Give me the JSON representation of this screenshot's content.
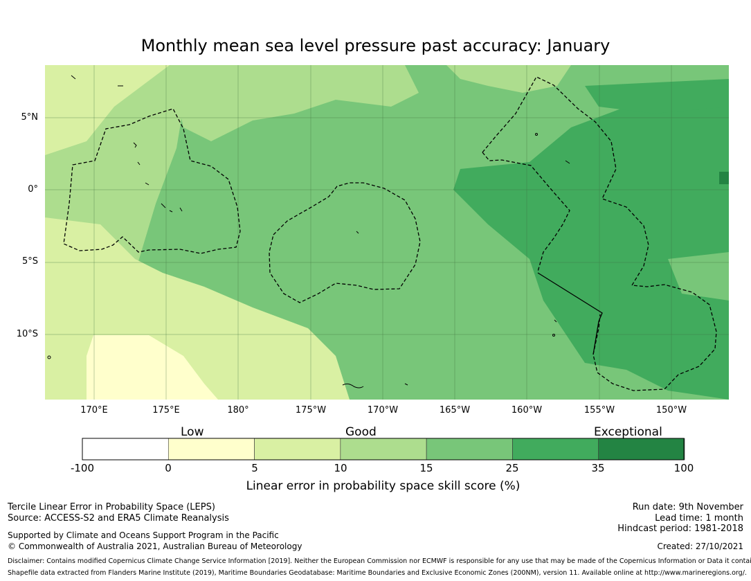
{
  "title": "Monthly mean sea level pressure past accuracy: January",
  "map": {
    "lat_labels": [
      "5°N",
      "0°",
      "5°S",
      "10°S"
    ],
    "lon_labels": [
      "170°E",
      "175°E",
      "180°",
      "175°W",
      "170°W",
      "165°W",
      "160°W",
      "155°W",
      "150°W"
    ]
  },
  "legend": {
    "categories": [
      "Low",
      "Good",
      "Exceptional"
    ],
    "ticks": [
      "-100",
      "0",
      "5",
      "10",
      "15",
      "25",
      "35",
      "100"
    ],
    "colors": [
      "#ffffff",
      "#ffffcc",
      "#d9f0a3",
      "#addd8e",
      "#78c679",
      "#41ab5d",
      "#238443"
    ],
    "label": "Linear error in probability space skill score (%)"
  },
  "footer": {
    "method": "Tercile Linear Error in Probability Space (LEPS)",
    "source": "Source: ACCESS-S2 and ERA5 Climate Reanalysis",
    "supported": "Supported by Climate and Oceans Support Program in the Pacific",
    "copyright": "© Commonwealth of Australia 2021, Australian Bureau of Meteorology",
    "run_date": "Run date: 9th November",
    "lead_time": "Lead time: 1 month",
    "hindcast": "Hindcast period: 1981-2018",
    "created": "Created: 27/10/2021",
    "disclaimer1": "Disclaimer: Contains modified Copernicus Climate Change Service Information [2019]. Neither the European Commission nor ECMWF is responsible for any use that may be made of the Copernicus Information or Data it contains.",
    "disclaimer2": "Shapefile data extracted from Flanders Marine Institute (2019), Maritime Boundaries Geodatabase: Maritime Boundaries and Exclusive Economic Zones (200NM), version 11. Available online at http://www.marineregions.org/."
  }
}
